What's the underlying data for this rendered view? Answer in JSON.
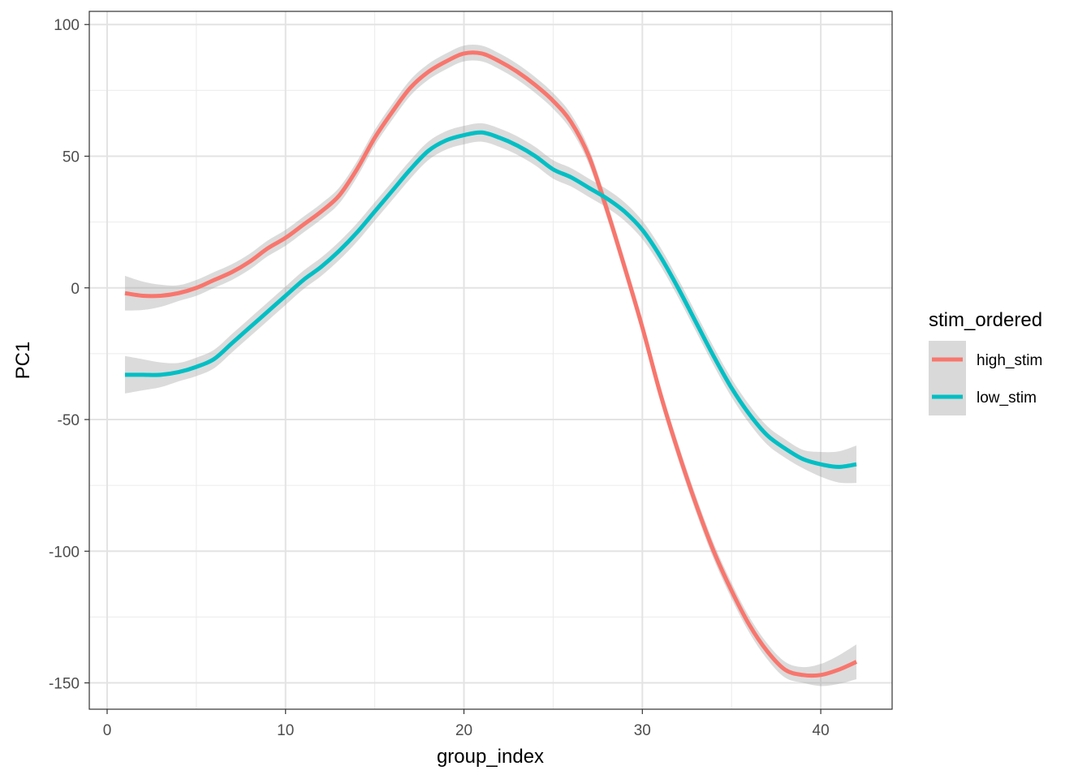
{
  "chart_data": {
    "type": "line",
    "xlabel": "group_index",
    "ylabel": "PC1",
    "xlim": [
      -1,
      44
    ],
    "ylim": [
      -160,
      105
    ],
    "x_ticks": [
      0,
      10,
      20,
      30,
      40
    ],
    "x_tick_labels": [
      "0",
      "10",
      "20",
      "30",
      "40"
    ],
    "y_ticks": [
      100,
      50,
      0,
      -50,
      -100,
      -150
    ],
    "y_tick_labels": [
      "100",
      "50",
      "0",
      "-50",
      "-100",
      "-150"
    ],
    "grid": true,
    "legend": {
      "title": "stim_ordered",
      "position": "right"
    },
    "series": [
      {
        "name": "high_stim",
        "color": "#F8766D",
        "x": [
          1,
          2,
          3,
          4,
          5,
          6,
          7,
          8,
          9,
          10,
          11,
          12,
          13,
          14,
          15,
          16,
          17,
          18,
          19,
          20,
          21,
          22,
          23,
          24,
          25,
          26,
          27,
          28,
          29,
          30,
          31,
          32,
          33,
          34,
          35,
          36,
          37,
          38,
          39,
          40,
          41,
          42
        ],
        "y": [
          -2,
          -3,
          -3,
          -2,
          0,
          3,
          6,
          10,
          15,
          19,
          24,
          29,
          35,
          45,
          57,
          67,
          76,
          82,
          86,
          89,
          89,
          86,
          82,
          77,
          71,
          63,
          50,
          30,
          8,
          -15,
          -40,
          -62,
          -82,
          -100,
          -115,
          -128,
          -138,
          -145,
          -147,
          -147,
          -145,
          -142
        ],
        "band": 3
      },
      {
        "name": "low_stim",
        "color": "#00BFC4",
        "x": [
          1,
          2,
          3,
          4,
          5,
          6,
          7,
          8,
          9,
          10,
          11,
          12,
          13,
          14,
          15,
          16,
          17,
          18,
          19,
          20,
          21,
          22,
          23,
          24,
          25,
          26,
          27,
          28,
          29,
          30,
          31,
          32,
          33,
          34,
          35,
          36,
          37,
          38,
          39,
          40,
          41,
          42
        ],
        "y": [
          -33,
          -33,
          -33,
          -32,
          -30,
          -27,
          -21,
          -15,
          -9,
          -3,
          3,
          8,
          14,
          21,
          29,
          37,
          45,
          52,
          56,
          58,
          59,
          57,
          54,
          50,
          45,
          42,
          38,
          34,
          29,
          22,
          12,
          0,
          -13,
          -26,
          -38,
          -48,
          -56,
          -61,
          -65,
          -67,
          -68,
          -67
        ],
        "band": 3.5
      }
    ]
  }
}
